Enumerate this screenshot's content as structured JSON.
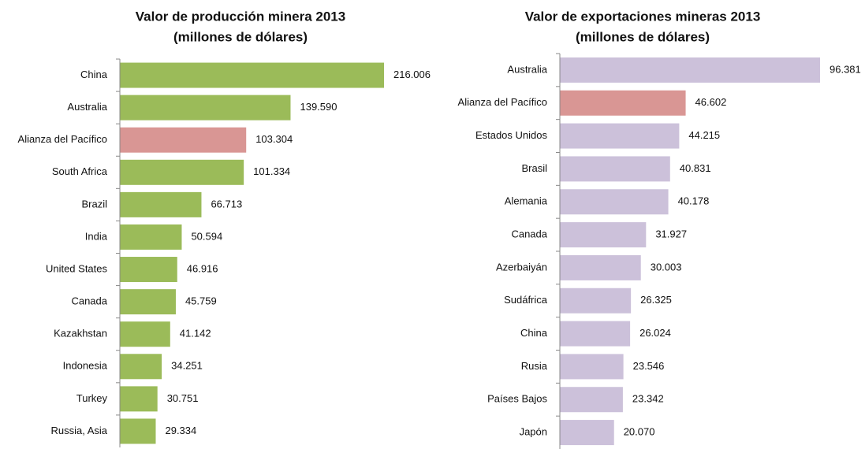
{
  "chart_data": [
    {
      "type": "bar",
      "title": "Valor de producción minera 2013",
      "subtitle": "(millones de dólares)",
      "categories": [
        "China",
        "Australia",
        "Alianza del Pacífico",
        "South Africa",
        "Brazil",
        "India",
        "United States",
        "Canada",
        "Kazakhstan",
        "Indonesia",
        "Turkey",
        "Russia, Asia"
      ],
      "values": [
        216006,
        139590,
        103304,
        101334,
        66713,
        50594,
        46916,
        45759,
        41142,
        34251,
        30751,
        29334
      ],
      "value_labels": [
        "216.006",
        "139.590",
        "103.304",
        "101.334",
        "66.713",
        "50.594",
        "46.916",
        "45.759",
        "41.142",
        "34.251",
        "30.751",
        "29.334"
      ],
      "colors": [
        "#9bbb59",
        "#9bbb59",
        "#d99694",
        "#9bbb59",
        "#9bbb59",
        "#9bbb59",
        "#9bbb59",
        "#9bbb59",
        "#9bbb59",
        "#9bbb59",
        "#9bbb59",
        "#9bbb59"
      ]
    },
    {
      "type": "bar",
      "title": "Valor de exportaciones mineras 2013",
      "subtitle": "(millones de dólares)",
      "categories": [
        "Australia",
        "Alianza del Pacífico",
        "Estados Unidos",
        "Brasil",
        "Alemania",
        "Canada",
        "Azerbaiyán",
        "Sudáfrica",
        "China",
        "Rusia",
        "Países Bajos",
        "Japón"
      ],
      "values": [
        96381,
        46602,
        44215,
        40831,
        40178,
        31927,
        30003,
        26325,
        26024,
        23546,
        23342,
        20070
      ],
      "value_labels": [
        "96.381",
        "46.602",
        "44.215",
        "40.831",
        "40.178",
        "31.927",
        "30.003",
        "26.325",
        "26.024",
        "23.546",
        "23.342",
        "20.070"
      ],
      "colors": [
        "#ccc1da",
        "#d99694",
        "#ccc1da",
        "#ccc1da",
        "#ccc1da",
        "#ccc1da",
        "#ccc1da",
        "#ccc1da",
        "#ccc1da",
        "#ccc1da",
        "#ccc1da",
        "#ccc1da"
      ]
    }
  ]
}
